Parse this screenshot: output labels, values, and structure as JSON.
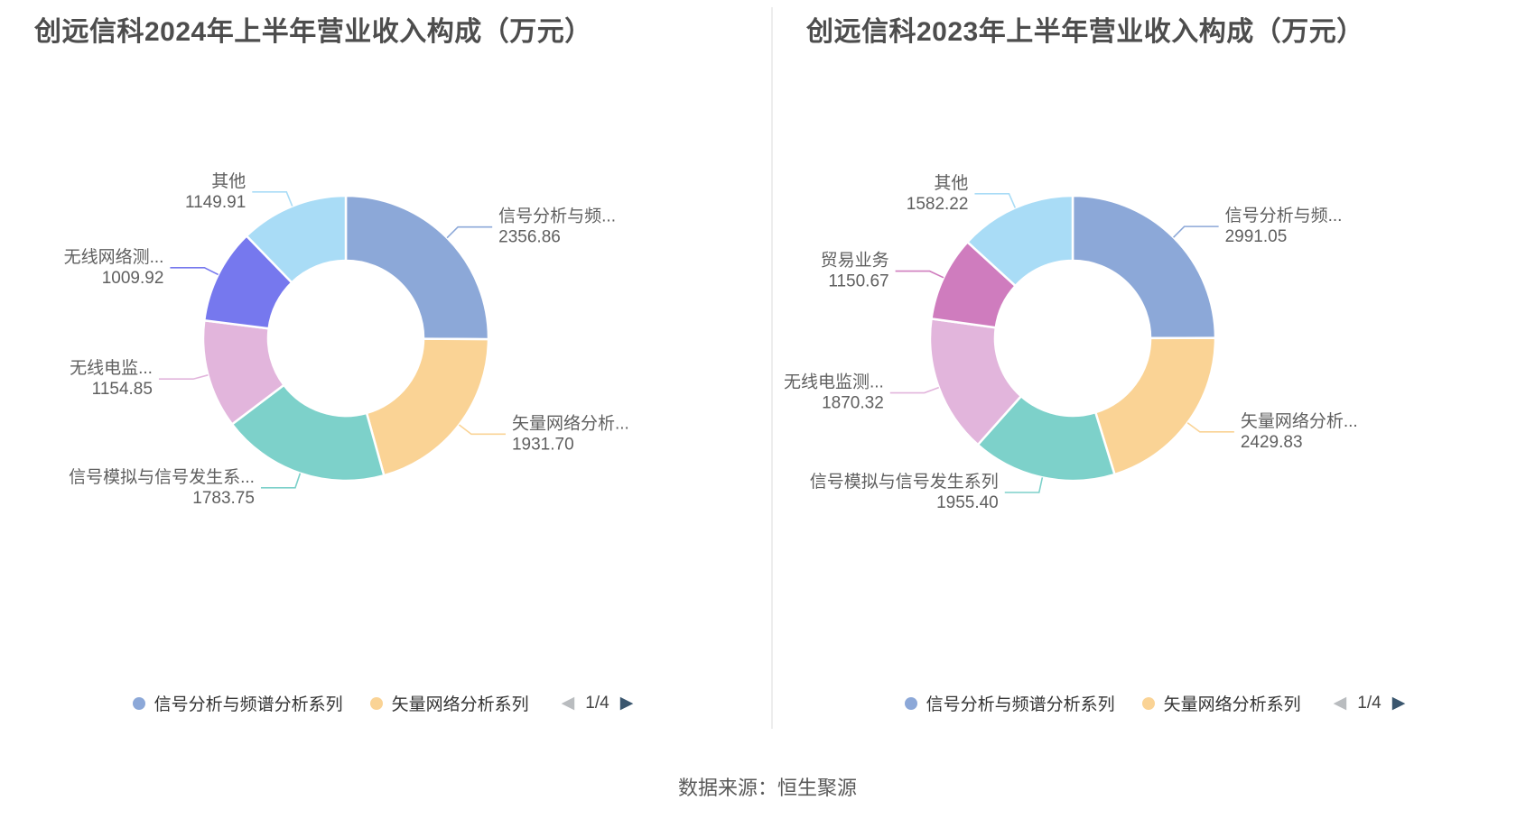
{
  "page": {
    "background": "#ffffff",
    "source_text": "数据来源：恒生聚源"
  },
  "chart_data": [
    {
      "type": "pie",
      "donut": true,
      "title": "创远信科2024年上半年营业收入构成（万元）",
      "unit": "万元",
      "start_angle_deg": 0,
      "clockwise": true,
      "slices": [
        {
          "name": "信号分析与频谱分析系列",
          "label": "信号分析与频...",
          "value": 2356.86,
          "value_label": "2356.86",
          "color": "#8CA8D8"
        },
        {
          "name": "矢量网络分析系列",
          "label": "矢量网络分析...",
          "value": 1931.7,
          "value_label": "1931.70",
          "color": "#FAD395"
        },
        {
          "name": "信号模拟与信号发生系列",
          "label": "信号模拟与信号发生系...",
          "value": 1783.75,
          "value_label": "1783.75",
          "color": "#7DD1CA"
        },
        {
          "name": "无线电监测系列",
          "label": "无线电监...",
          "value": 1154.85,
          "value_label": "1154.85",
          "color": "#E2B5DC"
        },
        {
          "name": "无线网络测试系列",
          "label": "无线网络测...",
          "value": 1009.92,
          "value_label": "1009.92",
          "color": "#7678EE"
        },
        {
          "name": "其他",
          "label": "其他",
          "value": 1149.91,
          "value_label": "1149.91",
          "color": "#A9DCF6"
        }
      ],
      "legend": {
        "items": [
          {
            "label": "信号分析与频谱分析系列",
            "color": "#8CA8D8"
          },
          {
            "label": "矢量网络分析系列",
            "color": "#FAD395"
          }
        ],
        "page": "1/4",
        "prev_icon": "◀",
        "next_icon": "▶",
        "prev_color": "#b9bcbf",
        "next_color": "#3a566e"
      }
    },
    {
      "type": "pie",
      "donut": true,
      "title": "创远信科2023年上半年营业收入构成（万元）",
      "unit": "万元",
      "start_angle_deg": 0,
      "clockwise": true,
      "slices": [
        {
          "name": "信号分析与频谱分析系列",
          "label": "信号分析与频...",
          "value": 2991.05,
          "value_label": "2991.05",
          "color": "#8CA8D8"
        },
        {
          "name": "矢量网络分析系列",
          "label": "矢量网络分析...",
          "value": 2429.83,
          "value_label": "2429.83",
          "color": "#FAD395"
        },
        {
          "name": "信号模拟与信号发生系列",
          "label": "信号模拟与信号发生系列",
          "value": 1955.4,
          "value_label": "1955.40",
          "color": "#7DD1CA"
        },
        {
          "name": "无线电监测系列",
          "label": "无线电监测...",
          "value": 1870.32,
          "value_label": "1870.32",
          "color": "#E2B5DC"
        },
        {
          "name": "贸易业务",
          "label": "贸易业务",
          "value": 1150.67,
          "value_label": "1150.67",
          "color": "#CF7CBE"
        },
        {
          "name": "其他",
          "label": "其他",
          "value": 1582.22,
          "value_label": "1582.22",
          "color": "#A9DCF6"
        }
      ],
      "legend": {
        "items": [
          {
            "label": "信号分析与频谱分析系列",
            "color": "#8CA8D8"
          },
          {
            "label": "矢量网络分析系列",
            "color": "#FAD395"
          }
        ],
        "page": "1/4",
        "prev_icon": "◀",
        "next_icon": "▶",
        "prev_color": "#b9bcbf",
        "next_color": "#3a566e"
      }
    }
  ]
}
